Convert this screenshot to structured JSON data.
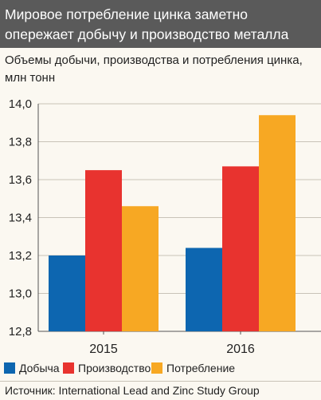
{
  "header": {
    "title_line1": "Мировое потребление цинка заметно",
    "title_line2": "опережает добычу и производство металла"
  },
  "subtitle": {
    "line1": "Объемы добычи, производства и потребления цинка,",
    "line2": "млн тонн"
  },
  "colors": {
    "Добыча": "#0d66b0",
    "Производство": "#e8332f",
    "Потребление": "#f7a823",
    "header_bg": "#5a5a5a"
  },
  "chart_data": {
    "type": "bar",
    "categories": [
      "2015",
      "2016"
    ],
    "series": [
      {
        "name": "Добыча",
        "values": [
          13.2,
          13.24
        ]
      },
      {
        "name": "Производство",
        "values": [
          13.65,
          13.67
        ]
      },
      {
        "name": "Потребление",
        "values": [
          13.46,
          13.94
        ]
      }
    ],
    "ylim": [
      12.8,
      14.0
    ],
    "yticks": [
      "12,8",
      "13,0",
      "13,2",
      "13,4",
      "13,6",
      "13,8",
      "14,0"
    ],
    "grid": true,
    "legend": "bottom"
  },
  "legend": {
    "items": [
      "Добыча",
      "Производство",
      "Потребление"
    ]
  },
  "source": {
    "text": "Источник: International Lead and Zinc Study Group"
  }
}
